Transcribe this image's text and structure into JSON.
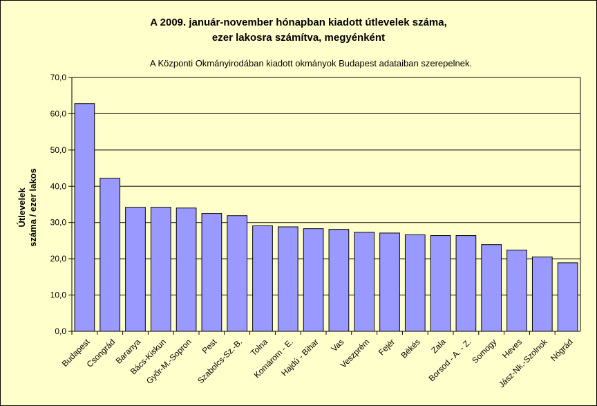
{
  "chart_data": {
    "type": "bar",
    "title_line1": "A 2009. január-november hónapban kiadott útlevelek száma,",
    "title_line2": "ezer lakosra számítva, megyénként",
    "subtitle": "A Központi Okmányirodában kiadott okmányok Budapest adataiban szerepelnek.",
    "ylabel_line1": "Útlevelek",
    "ylabel_line2": "száma / ezer lakos",
    "xlabel": "",
    "ylim": [
      0,
      70
    ],
    "yticks": [
      "0,0",
      "10,0",
      "20,0",
      "30,0",
      "40,0",
      "50,0",
      "60,0",
      "70,0"
    ],
    "grid": true,
    "legend": "none",
    "bar_color": "#9999ff",
    "categories": [
      "Budapest",
      "Csongrád",
      "Baranya",
      "Bács-Kiskun",
      "Győr-M.-Sopron",
      "Pest",
      "Szabolcs-Sz.-B.",
      "Tolna",
      "Komárom - E.",
      "Hajdú - Bihar",
      "Vas",
      "Veszprém",
      "Fejér",
      "Békés",
      "Zala",
      "Borsod - A. - Z.",
      "Somogy",
      "Heves",
      "Jász-Nk.-Szolnok",
      "Nógrád"
    ],
    "values": [
      62.8,
      42.2,
      34.2,
      34.2,
      34.0,
      32.5,
      31.9,
      29.1,
      28.8,
      28.3,
      28.1,
      27.3,
      27.1,
      26.6,
      26.4,
      26.4,
      23.9,
      22.4,
      20.5,
      18.9
    ]
  }
}
